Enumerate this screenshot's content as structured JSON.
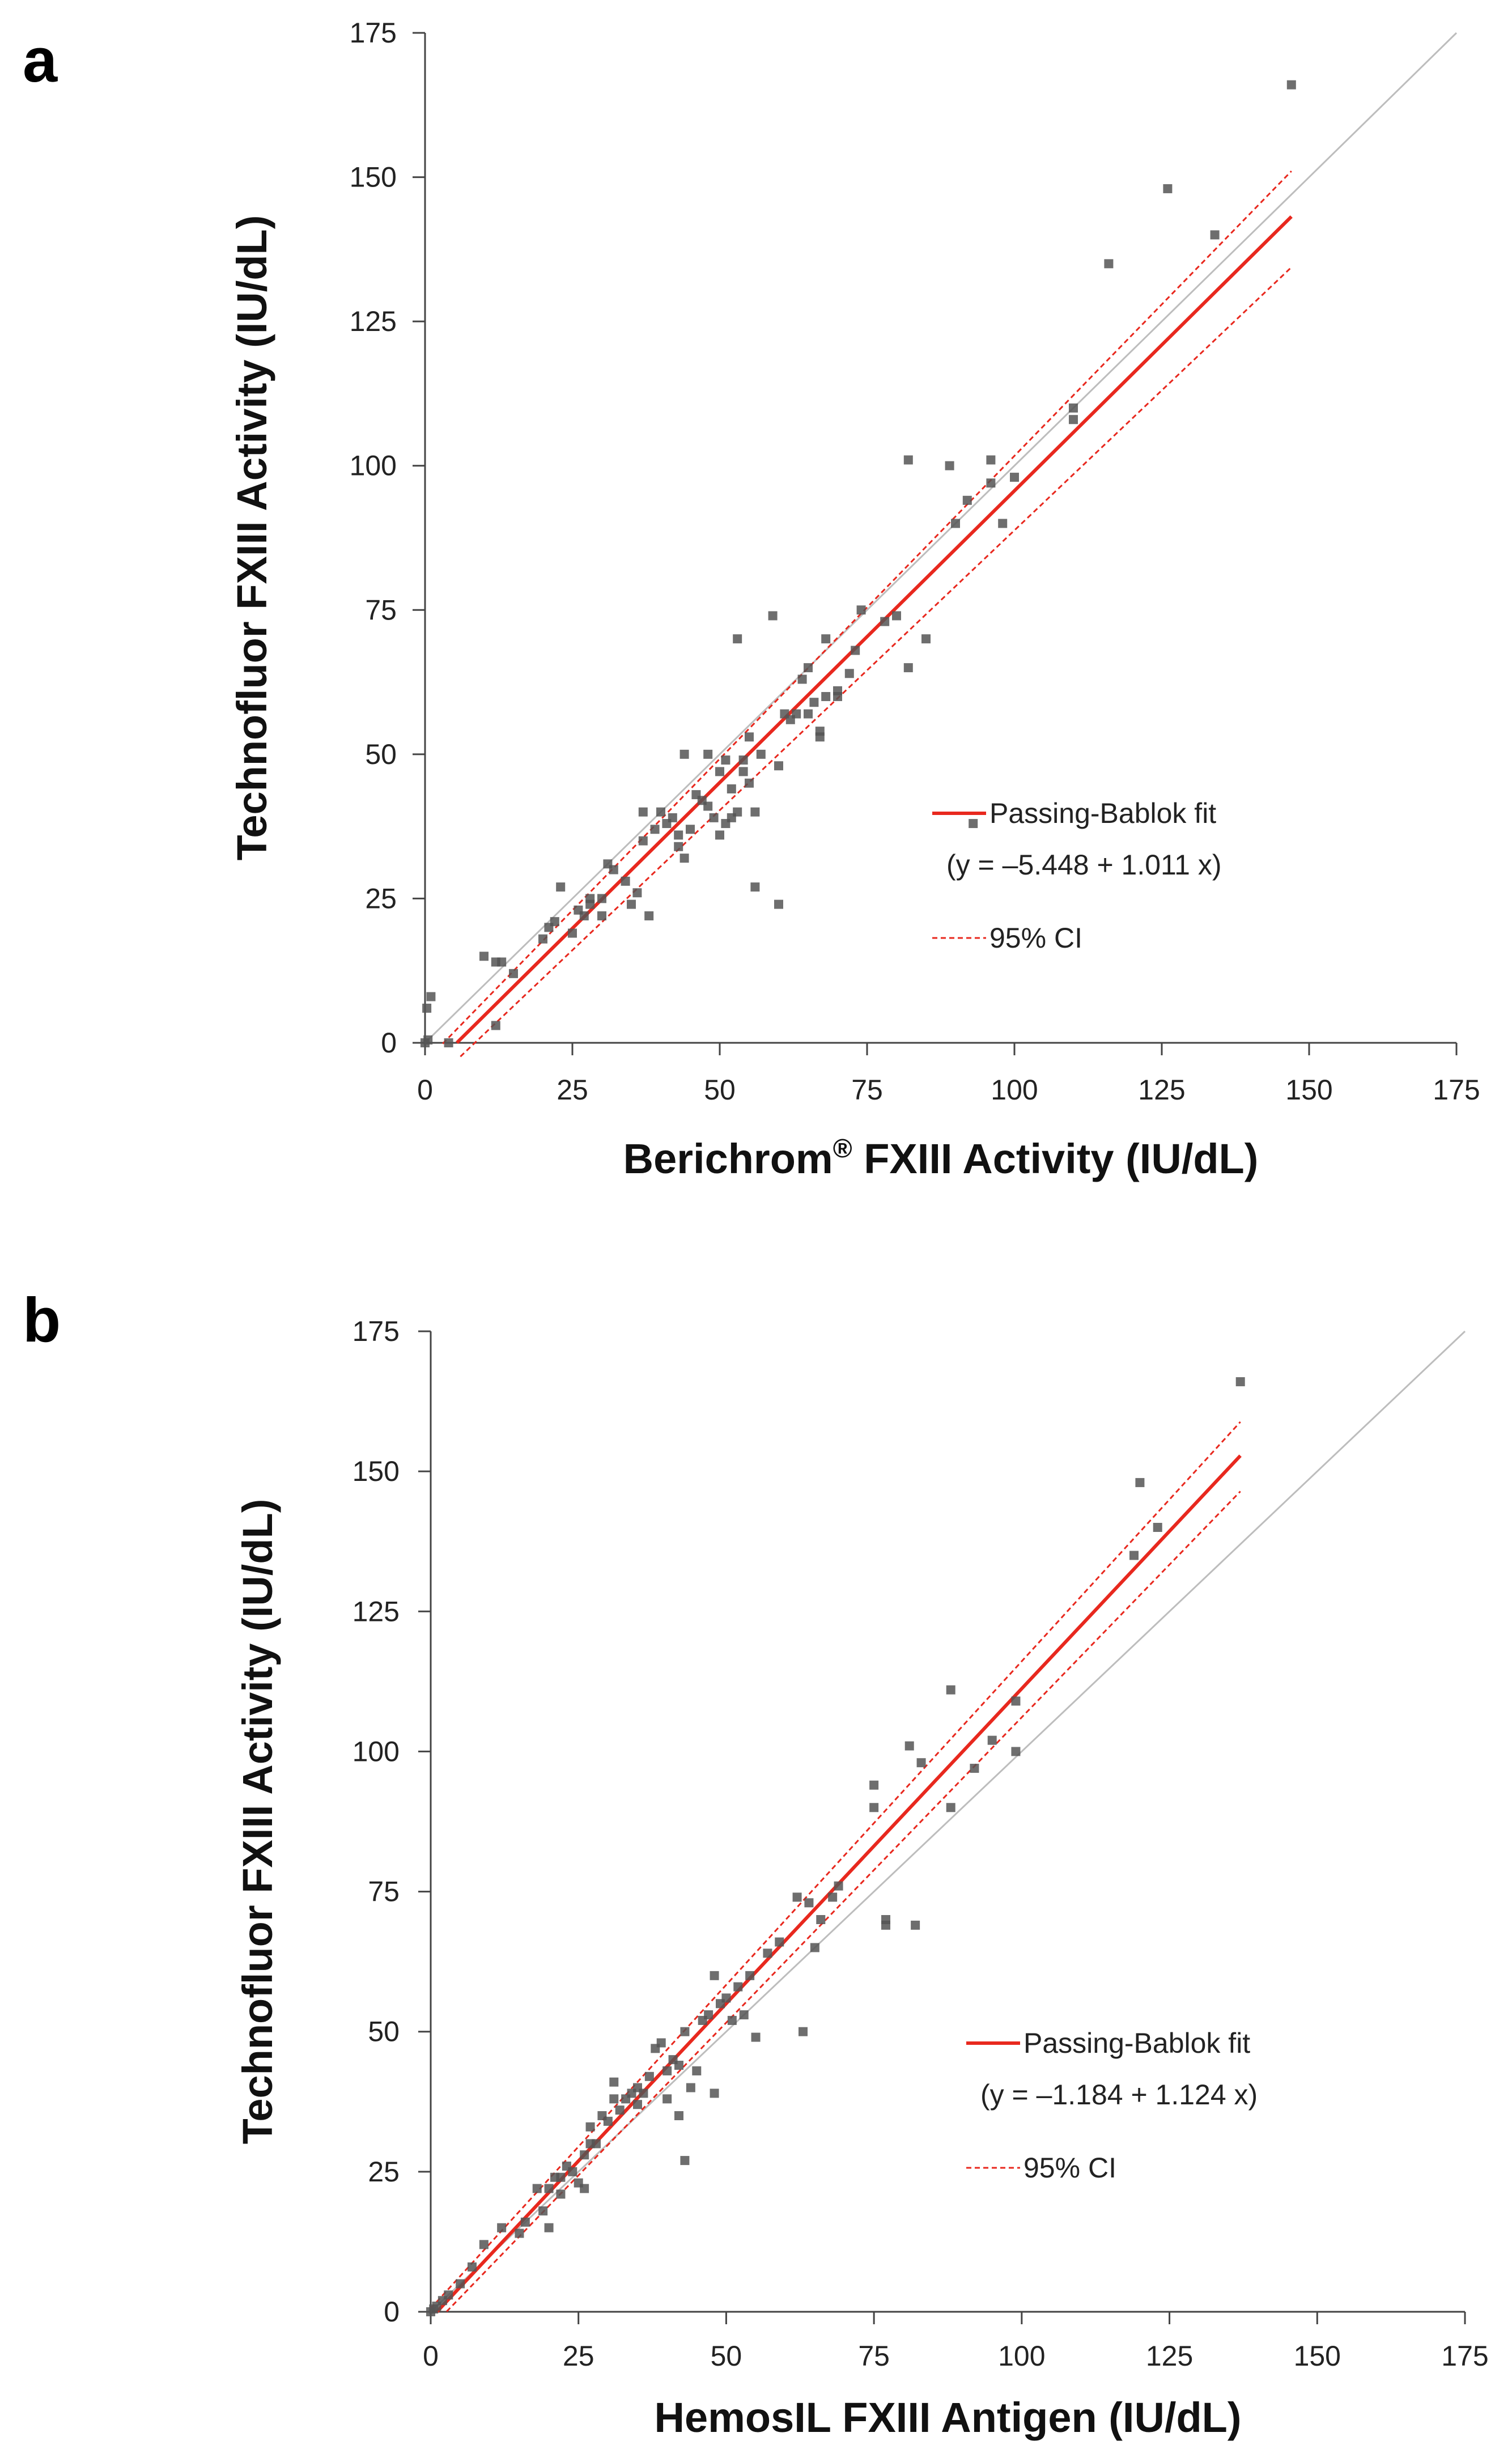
{
  "chart_data": [
    {
      "panel": "a",
      "type": "scatter",
      "xlabel": "Berichrom",
      "xlabel_sup": "®",
      "xlabel_rest": "FXIII Activity (IU/dL)",
      "ylabel": "Technofluor FXIII Activity (IU/dL)",
      "xlim": [
        0,
        175
      ],
      "ylim": [
        0,
        175
      ],
      "xticks": [
        0,
        25,
        50,
        75,
        100,
        125,
        150,
        175
      ],
      "yticks": [
        0,
        25,
        50,
        75,
        100,
        125,
        150,
        175
      ],
      "identity_line": {
        "from": [
          0,
          0
        ],
        "to": [
          175,
          175
        ],
        "color": "#bdbdbd"
      },
      "fit": {
        "intercept": -5.448,
        "slope": 1.011,
        "x_range": [
          5.4,
          147
        ],
        "color": "#e8281e"
      },
      "ci_lower": {
        "intercept": -8.2,
        "slope": 0.97,
        "x_range": [
          6,
          147
        ]
      },
      "ci_upper": {
        "intercept": -3.3,
        "slope": 1.05,
        "x_range": [
          3,
          147
        ]
      },
      "legend": {
        "fit_label": "Passing-Bablok fit",
        "equation": "(y =  –5.448 + 1.011 x)",
        "ci_label": "95% CI",
        "position": "right"
      },
      "points": [
        [
          0,
          0
        ],
        [
          0.3,
          6
        ],
        [
          1,
          8
        ],
        [
          0.5,
          0.5
        ],
        [
          4,
          0
        ],
        [
          12,
          3
        ],
        [
          10,
          15
        ],
        [
          12,
          14
        ],
        [
          13,
          14
        ],
        [
          15,
          12
        ],
        [
          20,
          18
        ],
        [
          21,
          20
        ],
        [
          22,
          21
        ],
        [
          23,
          27
        ],
        [
          25,
          19
        ],
        [
          26,
          23
        ],
        [
          27,
          22
        ],
        [
          28,
          24
        ],
        [
          28,
          25
        ],
        [
          30,
          25
        ],
        [
          30,
          22
        ],
        [
          31,
          31
        ],
        [
          32,
          30
        ],
        [
          34,
          28
        ],
        [
          35,
          24
        ],
        [
          36,
          26
        ],
        [
          37,
          35
        ],
        [
          37,
          40
        ],
        [
          38,
          22
        ],
        [
          39,
          37
        ],
        [
          40,
          40
        ],
        [
          41,
          38
        ],
        [
          42,
          39
        ],
        [
          43,
          34
        ],
        [
          43,
          36
        ],
        [
          44,
          32
        ],
        [
          44,
          50
        ],
        [
          45,
          37
        ],
        [
          46,
          43
        ],
        [
          47,
          42
        ],
        [
          48,
          41
        ],
        [
          48,
          50
        ],
        [
          49,
          39
        ],
        [
          50,
          36
        ],
        [
          50,
          47
        ],
        [
          51,
          38
        ],
        [
          51,
          49
        ],
        [
          52,
          44
        ],
        [
          52,
          39
        ],
        [
          53,
          40
        ],
        [
          53,
          70
        ],
        [
          54,
          47
        ],
        [
          54,
          49
        ],
        [
          55,
          53
        ],
        [
          55,
          45
        ],
        [
          56,
          40
        ],
        [
          56,
          27
        ],
        [
          57,
          50
        ],
        [
          59,
          74
        ],
        [
          60,
          48
        ],
        [
          60,
          24
        ],
        [
          61,
          57
        ],
        [
          62,
          56
        ],
        [
          63,
          57
        ],
        [
          64,
          63
        ],
        [
          65,
          65
        ],
        [
          65,
          57
        ],
        [
          66,
          59
        ],
        [
          67,
          54
        ],
        [
          67,
          53
        ],
        [
          68,
          60
        ],
        [
          68,
          70
        ],
        [
          70,
          61
        ],
        [
          70,
          60
        ],
        [
          72,
          64
        ],
        [
          73,
          68
        ],
        [
          74,
          75
        ],
        [
          78,
          73
        ],
        [
          80,
          74
        ],
        [
          82,
          65
        ],
        [
          82,
          101
        ],
        [
          85,
          70
        ],
        [
          89,
          100
        ],
        [
          90,
          90
        ],
        [
          92,
          94
        ],
        [
          93,
          38
        ],
        [
          96,
          101
        ],
        [
          96,
          97
        ],
        [
          98,
          90
        ],
        [
          100,
          98
        ],
        [
          110,
          108
        ],
        [
          110,
          110
        ],
        [
          116,
          135
        ],
        [
          126,
          148
        ],
        [
          134,
          140
        ],
        [
          147,
          166
        ]
      ]
    },
    {
      "panel": "b",
      "type": "scatter",
      "xlabel": "HemosIL FXIII Antigen (IU/dL)",
      "ylabel": "Technofluor FXIII Activity (IU/dL)",
      "xlim": [
        0,
        175
      ],
      "ylim": [
        0,
        175
      ],
      "xticks": [
        0,
        25,
        50,
        75,
        100,
        125,
        150,
        175
      ],
      "yticks": [
        0,
        25,
        50,
        75,
        100,
        125,
        150,
        175
      ],
      "identity_line": {
        "from": [
          0,
          0
        ],
        "to": [
          175,
          175
        ],
        "color": "#bdbdbd"
      },
      "fit": {
        "intercept": -1.184,
        "slope": 1.124,
        "x_range": [
          1.05,
          137
        ],
        "color": "#e8281e"
      },
      "ci_lower": {
        "intercept": -2.9,
        "slope": 1.09,
        "x_range": [
          2.7,
          137
        ]
      },
      "ci_upper": {
        "intercept": 0.6,
        "slope": 1.155,
        "x_range": [
          0,
          137
        ]
      },
      "legend": {
        "fit_label": "Passing-Bablok fit",
        "equation": "(y =  –1.184 + 1.124 x)",
        "ci_label": "95% CI",
        "position": "right"
      },
      "points": [
        [
          0,
          0
        ],
        [
          0.5,
          0.5
        ],
        [
          1,
          1
        ],
        [
          2,
          2
        ],
        [
          3,
          3
        ],
        [
          5,
          5
        ],
        [
          7,
          8
        ],
        [
          9,
          12
        ],
        [
          12,
          15
        ],
        [
          15,
          14
        ],
        [
          16,
          16
        ],
        [
          18,
          22
        ],
        [
          19,
          18
        ],
        [
          20,
          15
        ],
        [
          20,
          22
        ],
        [
          21,
          24
        ],
        [
          22,
          21
        ],
        [
          22,
          24
        ],
        [
          23,
          26
        ],
        [
          24,
          25
        ],
        [
          25,
          23
        ],
        [
          26,
          28
        ],
        [
          26,
          22
        ],
        [
          27,
          30
        ],
        [
          27,
          33
        ],
        [
          28,
          30
        ],
        [
          29,
          35
        ],
        [
          30,
          34
        ],
        [
          31,
          38
        ],
        [
          31,
          41
        ],
        [
          32,
          36
        ],
        [
          33,
          38
        ],
        [
          34,
          39
        ],
        [
          35,
          37
        ],
        [
          35,
          40
        ],
        [
          36,
          39
        ],
        [
          37,
          42
        ],
        [
          38,
          47
        ],
        [
          39,
          48
        ],
        [
          40,
          43
        ],
        [
          40,
          38
        ],
        [
          41,
          45
        ],
        [
          42,
          35
        ],
        [
          42,
          44
        ],
        [
          43,
          27
        ],
        [
          43,
          50
        ],
        [
          44,
          40
        ],
        [
          45,
          43
        ],
        [
          46,
          52
        ],
        [
          47,
          53
        ],
        [
          48,
          60
        ],
        [
          48,
          39
        ],
        [
          49,
          55
        ],
        [
          50,
          56
        ],
        [
          51,
          52
        ],
        [
          52,
          58
        ],
        [
          53,
          53
        ],
        [
          54,
          60
        ],
        [
          55,
          49
        ],
        [
          57,
          64
        ],
        [
          59,
          66
        ],
        [
          62,
          74
        ],
        [
          63,
          50
        ],
        [
          64,
          73
        ],
        [
          65,
          65
        ],
        [
          66,
          70
        ],
        [
          68,
          74
        ],
        [
          69,
          76
        ],
        [
          75,
          94
        ],
        [
          75,
          90
        ],
        [
          77,
          70
        ],
        [
          77,
          69
        ],
        [
          81,
          101
        ],
        [
          82,
          69
        ],
        [
          83,
          98
        ],
        [
          88,
          90
        ],
        [
          88,
          111
        ],
        [
          92,
          97
        ],
        [
          95,
          102
        ],
        [
          99,
          109
        ],
        [
          99,
          100
        ],
        [
          119,
          135
        ],
        [
          120,
          148
        ],
        [
          123,
          140
        ],
        [
          137,
          166
        ]
      ]
    }
  ]
}
